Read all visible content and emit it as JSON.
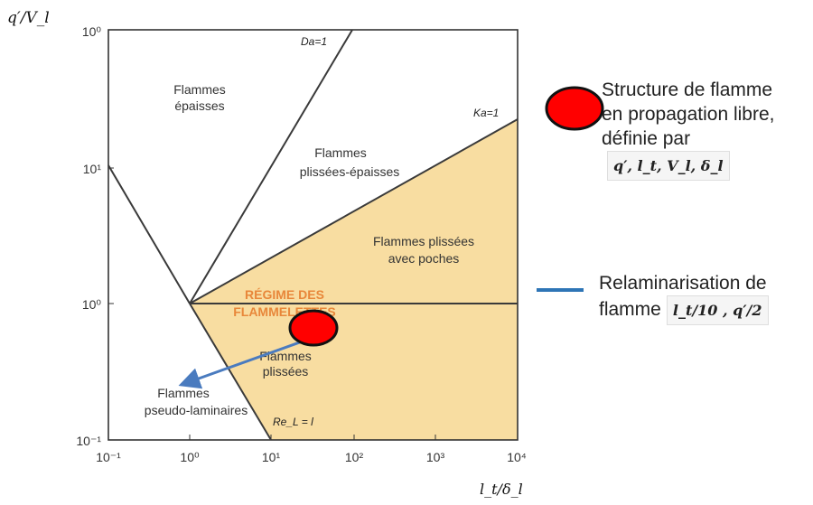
{
  "axes": {
    "y_label": "q′/V_l",
    "x_label": "l_t/δ_l",
    "x_ticks": [
      "10⁻¹",
      "10⁰",
      "10¹",
      "10²",
      "10³",
      "10⁴"
    ],
    "y_ticks": [
      "10⁰",
      "10¹",
      "10⁰",
      "10⁻¹"
    ]
  },
  "lines": {
    "da": "Da=1",
    "ka": "Ka=1",
    "re": "Re_L = l"
  },
  "regions": {
    "epaisses": [
      "Flammes",
      "épaisses"
    ],
    "plissees_epaisses": [
      "Flammes",
      "plissées-épaisses"
    ],
    "poches": [
      "Flammes plissées",
      "avec poches"
    ],
    "regime": [
      "RÉGIME DES",
      "FLAMMELETTES"
    ],
    "plissees": [
      "Flammes",
      "plissées"
    ],
    "pseudo": [
      "Flammes",
      "pseudo-laminaires"
    ]
  },
  "legend": {
    "marker_line1": "Structure de flamme",
    "marker_line2": "en propagation libre,",
    "marker_line3": "définie par",
    "marker_formula": "q′, l_t, V_l, δ_l",
    "line_line1": "Relaminarisation de",
    "line_line2": "flamme",
    "line_formula": "l_t/10 , q′/2"
  },
  "colors": {
    "shaded": "#f8dda1",
    "marker": "#ff0000",
    "arrow": "#4a7bbf",
    "regime_text": "#e8873a",
    "legend_line": "#2e75b6"
  }
}
